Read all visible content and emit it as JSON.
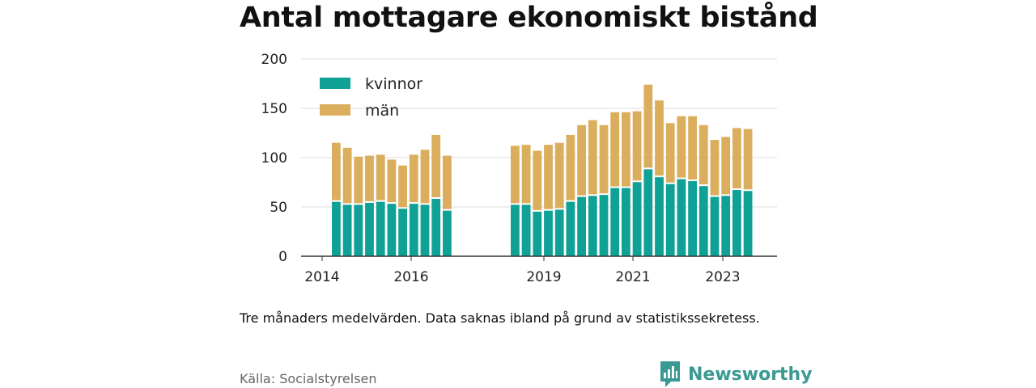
{
  "chart_data": {
    "type": "bar",
    "stacked": true,
    "title": "Antal mottagare ekonomiskt bistånd",
    "ylim": [
      0,
      200
    ],
    "yticks": [
      0,
      50,
      100,
      150,
      200
    ],
    "xticks": [
      "2014",
      "2016",
      "2019",
      "2021",
      "2023"
    ],
    "grid": true,
    "legend_position": "top-left",
    "series": [
      {
        "name": "kvinnor",
        "color": "#0fa196"
      },
      {
        "name": "män",
        "color": "#dbae5d"
      }
    ],
    "bar_groups": [
      {
        "kvinnor": [
          56,
          53,
          53,
          55,
          56,
          54,
          49,
          54,
          53,
          59,
          47
        ],
        "män": [
          59,
          57,
          48,
          47,
          47,
          44,
          43,
          49,
          55,
          64,
          55
        ]
      },
      {
        "kvinnor": [
          53,
          53,
          46,
          47,
          48,
          56,
          61,
          62,
          63,
          70,
          70,
          76,
          89,
          81,
          74,
          79,
          77,
          72,
          61,
          62,
          68,
          67
        ],
        "män": [
          59,
          60,
          61,
          66,
          67,
          67,
          72,
          76,
          70,
          76,
          76,
          71,
          85,
          77,
          61,
          63,
          65,
          61,
          57,
          59,
          62,
          62
        ]
      }
    ]
  },
  "note": "Tre månaders medelvärden. Data saknas ibland på grund av statistikssekretess.",
  "source": "Källa: Socialstyrelsen",
  "brand": {
    "name": "Newsworthy",
    "icon": "bar-chart-speech-bubble-icon",
    "color": "#3a9a93"
  }
}
